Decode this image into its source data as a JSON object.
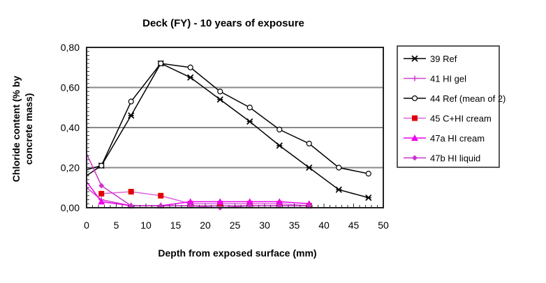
{
  "chart_data": {
    "type": "line",
    "title": "Deck (FY) - 10 years of exposure",
    "xlabel": "Depth from exposed surface (mm)",
    "ylabel": "Chloride content (% by concrete mass)",
    "ylabel_lines": [
      "Chloride content (% by",
      "concrete mass)"
    ],
    "xlim": [
      0,
      50
    ],
    "ylim": [
      0,
      0.8
    ],
    "xticks": [
      "0",
      "5",
      "10",
      "15",
      "20",
      "25",
      "30",
      "35",
      "40",
      "45",
      "50"
    ],
    "yticks": [
      "0,00",
      "0,20",
      "0,40",
      "0,60",
      "0,80"
    ],
    "grid": "horizontal",
    "legend_position": "right",
    "series": [
      {
        "name": "39 Ref",
        "color": "#000000",
        "marker": "star",
        "x": [
          0,
          2.5,
          7.5,
          12.5,
          17.5,
          22.5,
          27.5,
          32.5,
          37.5,
          42.5,
          47.5
        ],
        "y": [
          0.16,
          0.21,
          0.46,
          0.72,
          0.65,
          0.54,
          0.43,
          0.31,
          0.2,
          0.09,
          0.05
        ],
        "marker_from": 1
      },
      {
        "name": "41 HI gel",
        "color": "#cc44cc",
        "marker": "plus",
        "x": [
          0,
          2.5,
          7.5,
          12.5,
          17.5,
          22.5,
          27.5,
          32.5,
          37.5
        ],
        "y": [
          0.1,
          0.04,
          0.01,
          0.01,
          0.01,
          0.01,
          0.01,
          0.01,
          0.01
        ],
        "marker_from": 1
      },
      {
        "name": "44 Ref (mean of 2)",
        "color": "#000000",
        "marker": "circle",
        "x": [
          0,
          2.5,
          7.5,
          12.5,
          17.5,
          22.5,
          27.5,
          32.5,
          37.5,
          42.5,
          47.5
        ],
        "y": [
          0.19,
          0.21,
          0.53,
          0.72,
          0.7,
          0.58,
          0.5,
          0.39,
          0.32,
          0.2,
          0.17
        ],
        "marker_from": 1
      },
      {
        "name": "45 C+HI cream",
        "color": "#dd66dd",
        "marker": "square",
        "marker_color": "#e00000",
        "x": [
          2.5,
          7.5,
          12.5,
          17.5,
          22.5,
          27.5,
          32.5,
          37.5
        ],
        "y": [
          0.07,
          0.08,
          0.06,
          0.02,
          0.02,
          0.02,
          0.02,
          0.01
        ],
        "marker_from": 0
      },
      {
        "name": "47a HI cream",
        "color": "#ee00ee",
        "marker": "triangle",
        "x": [
          0,
          2.5,
          7.5,
          12.5,
          17.5,
          22.5,
          27.5,
          32.5,
          37.5
        ],
        "y": [
          0.13,
          0.03,
          0.01,
          0.01,
          0.03,
          0.03,
          0.03,
          0.03,
          0.02
        ],
        "marker_from": 1
      },
      {
        "name": "47b HI liquid",
        "color": "#cc33cc",
        "marker": "diamond",
        "x": [
          0,
          2.5,
          7.5,
          12.5,
          17.5,
          22.5,
          27.5,
          32.5,
          37.5
        ],
        "y": [
          0.27,
          0.11,
          0.01,
          0.01,
          0.01,
          0.0,
          0.01,
          0.01,
          0.01
        ],
        "marker_from": 1
      }
    ]
  }
}
